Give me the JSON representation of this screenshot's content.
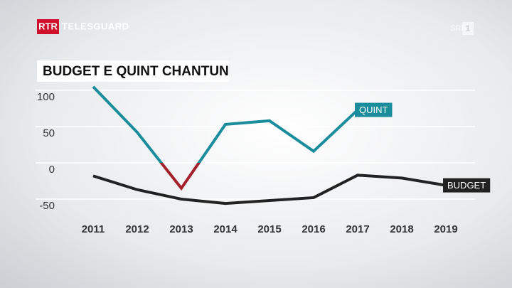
{
  "logo": {
    "brand": "RTR",
    "program": "TELESGUARD"
  },
  "channel": {
    "name": "SRF",
    "number": "1"
  },
  "chart_data": {
    "type": "line",
    "title": "BUDGET E QUINT CHANTUN",
    "categories": [
      "2011",
      "2012",
      "2013",
      "2014",
      "2015",
      "2016",
      "2017",
      "2018",
      "2019"
    ],
    "series": [
      {
        "name": "QUINT",
        "color": "#1b8c9c",
        "negative_color": "#a3202c",
        "values": [
          105,
          42,
          -35,
          53,
          58,
          16,
          73,
          null,
          null
        ]
      },
      {
        "name": "BUDGET",
        "color": "#222222",
        "values": [
          -18,
          -37,
          -50,
          -56,
          -52,
          -48,
          -17,
          -21,
          -31
        ]
      }
    ],
    "ylim": [
      -65,
      110
    ],
    "yticks": [
      100,
      50,
      0,
      -50
    ],
    "grid": true
  }
}
